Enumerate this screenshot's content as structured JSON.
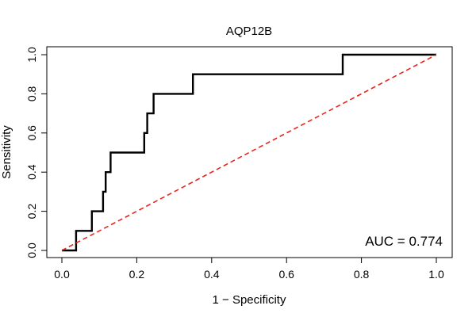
{
  "chart_data": {
    "type": "line",
    "title": "AQP12B",
    "xlabel": "1 − Specificity",
    "ylabel": "Sensitivity",
    "xlim": [
      0,
      1
    ],
    "ylim": [
      0,
      1
    ],
    "x_ticks": [
      "0.0",
      "0.2",
      "0.4",
      "0.6",
      "0.8",
      "1.0"
    ],
    "y_ticks": [
      "0.0",
      "0.2",
      "0.4",
      "0.6",
      "0.8",
      "1.0"
    ],
    "grid": false,
    "legend": "none",
    "annotation": "AUC = 0.774",
    "series": [
      {
        "color": "#000000",
        "style": "step",
        "x": [
          0.0,
          0.038,
          0.038,
          0.08,
          0.08,
          0.11,
          0.11,
          0.117,
          0.117,
          0.13,
          0.13,
          0.22,
          0.22,
          0.228,
          0.228,
          0.245,
          0.245,
          0.35,
          0.35,
          0.75,
          0.75,
          1.0
        ],
        "y": [
          0.0,
          0.0,
          0.1,
          0.1,
          0.2,
          0.2,
          0.3,
          0.3,
          0.4,
          0.4,
          0.5,
          0.5,
          0.6,
          0.6,
          0.7,
          0.7,
          0.8,
          0.8,
          0.9,
          0.9,
          1.0,
          1.0
        ]
      },
      {
        "color": "#e8251f",
        "style": "dashed",
        "x": [
          0,
          1
        ],
        "y": [
          0,
          1
        ]
      }
    ]
  }
}
